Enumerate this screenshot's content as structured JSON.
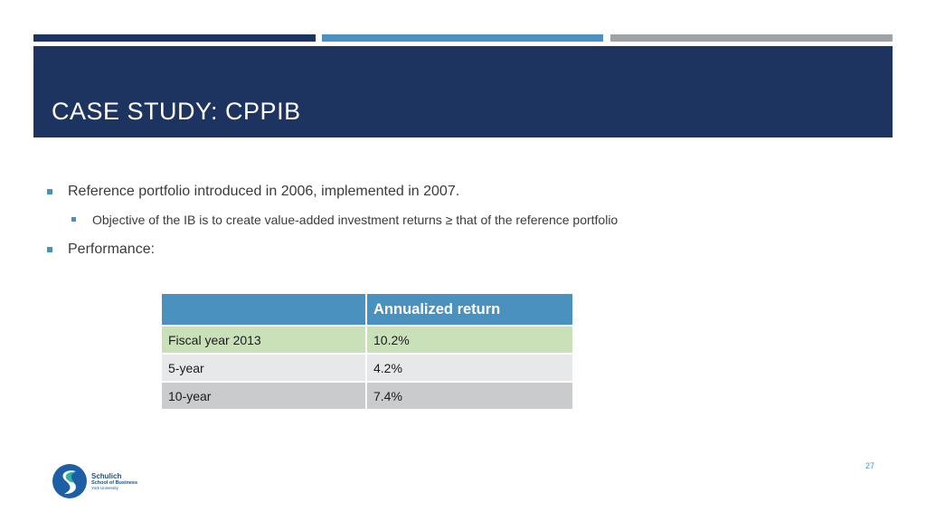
{
  "slide": {
    "title": "CASE STUDY: CPPIB",
    "page_number": "27",
    "accent_colors": {
      "navy": "#1d3461",
      "blue": "#4a91c0",
      "gray": "#9ea3a8"
    }
  },
  "content": {
    "bullets": [
      {
        "level": 1,
        "text": "Reference portfolio introduced in 2006, implemented in 2007."
      },
      {
        "level": 2,
        "text": "Objective of the IB is to create value-added investment returns ≥ that of the reference portfolio"
      },
      {
        "level": 1,
        "text": "Performance:"
      }
    ]
  },
  "table": {
    "headers": [
      "",
      "Annualized return"
    ],
    "rows": [
      [
        "Fiscal year 2013",
        "10.2%"
      ],
      [
        "5-year",
        "4.2%"
      ],
      [
        "10-year",
        "7.4%"
      ]
    ],
    "row_colors": [
      "#c9e0b8",
      "#e7e8e9",
      "#c9cbcd"
    ]
  },
  "logo": {
    "name": "Schulich",
    "subtitle": "School of Business",
    "university": "York University",
    "icon": "schulich-s-logo-icon"
  }
}
